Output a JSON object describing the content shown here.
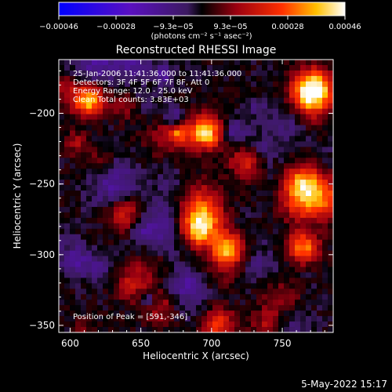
{
  "chart_data": {
    "type": "heatmap",
    "title": "Reconstructed RHESSI Image",
    "xlabel": "Heliocentric X (arcsec)",
    "ylabel": "Heliocentric Y (arcsec)",
    "xlim": [
      592,
      786
    ],
    "ylim": [
      -355,
      -162
    ],
    "x_ticks": [
      600,
      650,
      700,
      750
    ],
    "x_tick_labels": [
      "600",
      "650",
      "700",
      "750"
    ],
    "y_ticks": [
      -200,
      -250,
      -300,
      -350
    ],
    "y_tick_labels": [
      "−200",
      "−250",
      "−300",
      "−350"
    ],
    "colorbar": {
      "range": [
        -0.00046,
        0.00046
      ],
      "tick_labels": [
        "−0.00046",
        "−0.00028",
        "−9.3e−05",
        "9.3e−05",
        "0.00028",
        "0.00046"
      ],
      "unit_label": "(photons cm⁻² s⁻¹ asec⁻²)"
    },
    "annotations": [
      "25-Jan-2006 11:41:36.000 to 11:41:36.000",
      "Detectors: 3F 4F 5F 6F 7F 8F, Att 0",
      "Energy Range: 12.0 - 25.0 keV",
      "Clean     Total counts: 3.83E+03"
    ],
    "peak_label": "Position of Peak = [591,-346]",
    "peak_position": [
      591,
      -346
    ]
  },
  "footer": {
    "date": "5-May-2022 15:17"
  }
}
